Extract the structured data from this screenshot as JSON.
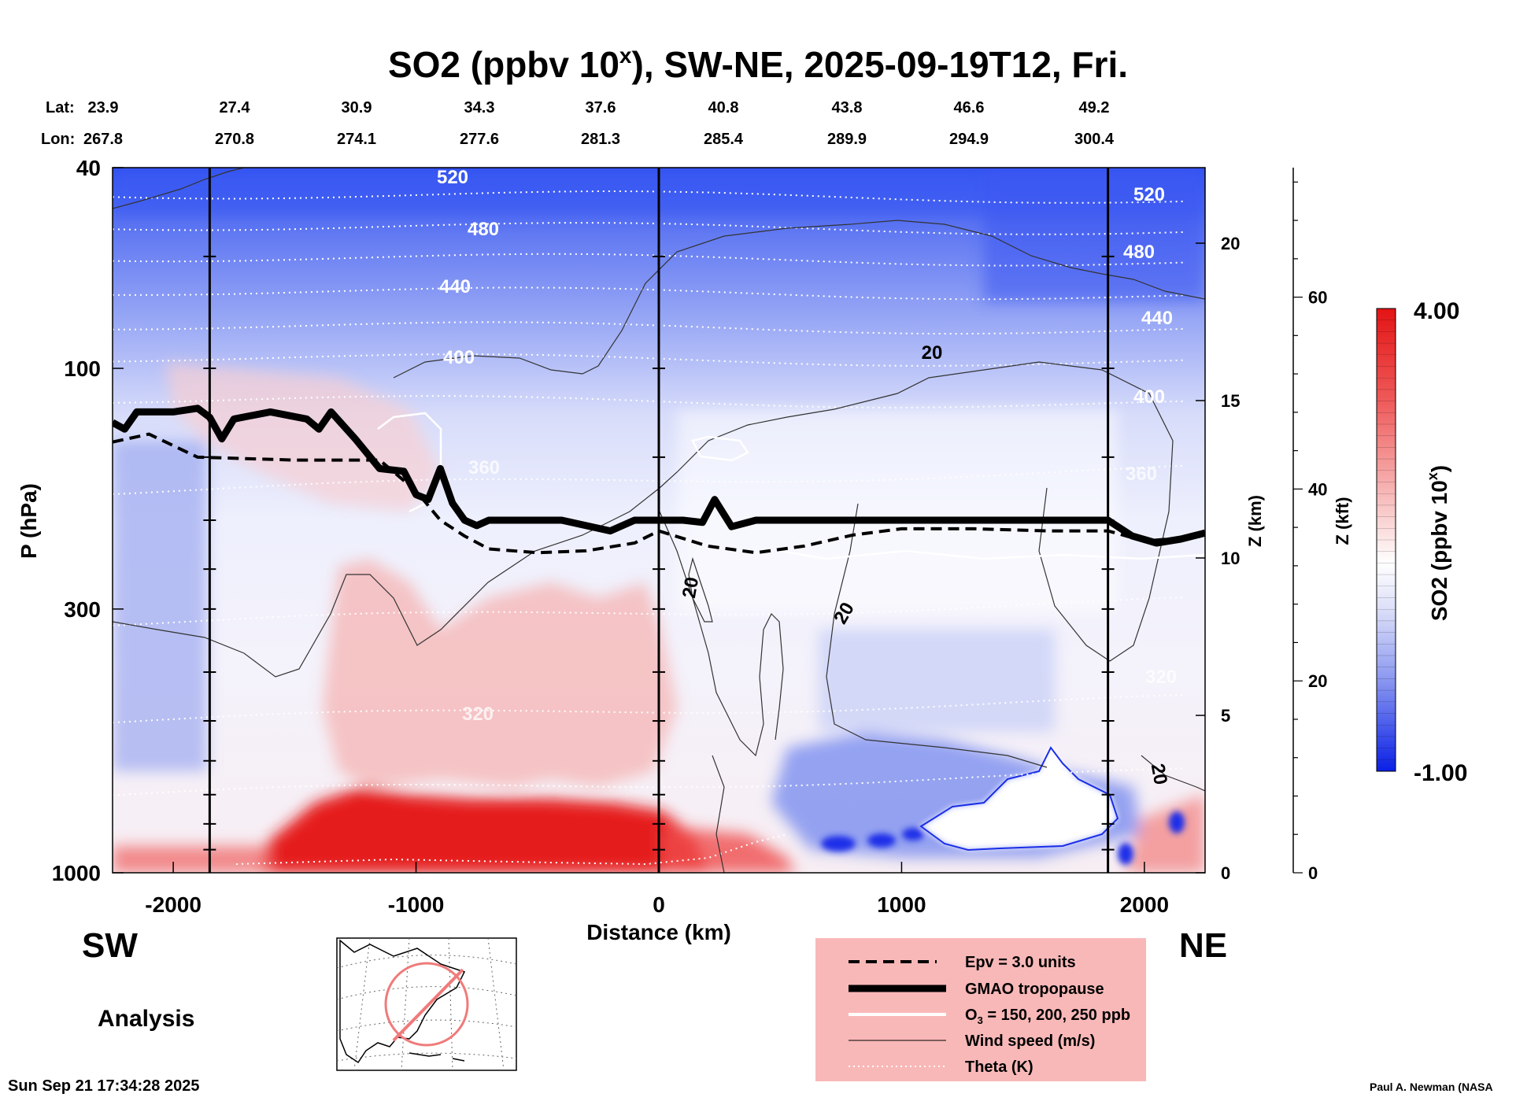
{
  "chart_data": {
    "type": "heatmap",
    "title_prefix": "SO2 (ppbv 10",
    "title_sup": "x",
    "title_suffix": "), SW-NE, 2025-09-19T12, Fri.",
    "xlabel": "Distance (km)",
    "ylabel": "P (hPa)",
    "z_km_label": "Z (km)",
    "z_kft_label": "Z (kft)",
    "colorbar_label_prefix": "SO2 (ppbv 10",
    "colorbar_label_sup": "x",
    "colorbar_label_suffix": ")",
    "colorbar_range": [
      -1.0,
      4.0
    ],
    "colorbar_tick_labels": [
      "4.00",
      "-1.00"
    ],
    "x_range": [
      -2250,
      2250
    ],
    "x_ticks": [
      -2000,
      -1000,
      0,
      1000,
      2000
    ],
    "x_tick_labels": [
      "-2000",
      "-1000",
      "0",
      "1000",
      "2000"
    ],
    "y_range_hpa": [
      1000,
      40
    ],
    "y_ticks": [
      40,
      100,
      300,
      1000
    ],
    "y_tick_labels": [
      "40",
      "100",
      "300",
      "1000"
    ],
    "z_km_ticks": [
      0,
      5,
      10,
      15,
      20
    ],
    "z_km_tick_labels": [
      "0",
      "5",
      "10",
      "15",
      "20"
    ],
    "z_kft_ticks": [
      0,
      20,
      40,
      60
    ],
    "z_kft_tick_labels": [
      "0",
      "20",
      "40",
      "60"
    ],
    "lat_label": "Lat:",
    "lon_label": "Lon:",
    "lat_values": [
      "23.9",
      "27.4",
      "30.9",
      "34.3",
      "37.6",
      "40.8",
      "43.8",
      "46.6",
      "49.2"
    ],
    "lon_values": [
      "267.8",
      "270.8",
      "274.1",
      "277.6",
      "281.3",
      "285.4",
      "289.9",
      "294.9",
      "300.4"
    ],
    "vertical_markers_km": [
      -1850,
      0,
      1850
    ],
    "theta_contour_labels": [
      "520",
      "480",
      "440",
      "400",
      "360",
      "320",
      "520",
      "480",
      "440",
      "400",
      "360",
      "320"
    ],
    "wind_contour_labels": [
      "20",
      "20",
      "20",
      "20"
    ],
    "gmao_tropopause_hpa": [
      [
        -2250,
        128
      ],
      [
        -2200,
        132
      ],
      [
        -2150,
        122
      ],
      [
        -2000,
        122
      ],
      [
        -1900,
        120
      ],
      [
        -1850,
        125
      ],
      [
        -1800,
        138
      ],
      [
        -1750,
        126
      ],
      [
        -1600,
        122
      ],
      [
        -1450,
        126
      ],
      [
        -1400,
        132
      ],
      [
        -1350,
        122
      ],
      [
        -1250,
        138
      ],
      [
        -1150,
        158
      ],
      [
        -1050,
        160
      ],
      [
        -1000,
        178
      ],
      [
        -950,
        182
      ],
      [
        -900,
        158
      ],
      [
        -850,
        185
      ],
      [
        -800,
        200
      ],
      [
        -750,
        205
      ],
      [
        -700,
        200
      ],
      [
        -550,
        200
      ],
      [
        -400,
        200
      ],
      [
        -200,
        210
      ],
      [
        -100,
        200
      ],
      [
        0,
        200
      ],
      [
        100,
        200
      ],
      [
        180,
        202
      ],
      [
        230,
        182
      ],
      [
        300,
        206
      ],
      [
        400,
        200
      ],
      [
        1000,
        200
      ],
      [
        1500,
        200
      ],
      [
        1850,
        200
      ],
      [
        1950,
        215
      ],
      [
        2050,
        222
      ],
      [
        2150,
        218
      ],
      [
        2250,
        212
      ]
    ],
    "epv_3_units_hpa": [
      [
        -2250,
        140
      ],
      [
        -2100,
        135
      ],
      [
        -1900,
        150
      ],
      [
        -1500,
        152
      ],
      [
        -1150,
        152
      ],
      [
        -1000,
        175
      ],
      [
        -900,
        200
      ],
      [
        -800,
        215
      ],
      [
        -700,
        228
      ],
      [
        -500,
        232
      ],
      [
        -300,
        230
      ],
      [
        -100,
        222
      ],
      [
        0,
        210
      ],
      [
        200,
        225
      ],
      [
        400,
        232
      ],
      [
        600,
        225
      ],
      [
        800,
        214
      ],
      [
        1000,
        208
      ],
      [
        1300,
        208
      ],
      [
        1600,
        210
      ],
      [
        1850,
        210
      ],
      [
        2000,
        220
      ],
      [
        2250,
        215
      ]
    ],
    "legend_items": [
      "Epv = 3.0 units",
      "GMAO tropopause",
      "O3 = 150, 200, 250 ppb",
      "Wind speed (m/s)",
      "Theta (K)"
    ],
    "legend_o3_prefix": "O",
    "legend_o3_sub": "3",
    "legend_o3_suffix": " = 150, 200, 250 ppb",
    "direction_left": "SW",
    "direction_right": "NE",
    "analysis_label": "Analysis",
    "timestamp": "Sun Sep 21 17:34:28 2025",
    "credit": "Paul A. Newman (NASA"
  }
}
